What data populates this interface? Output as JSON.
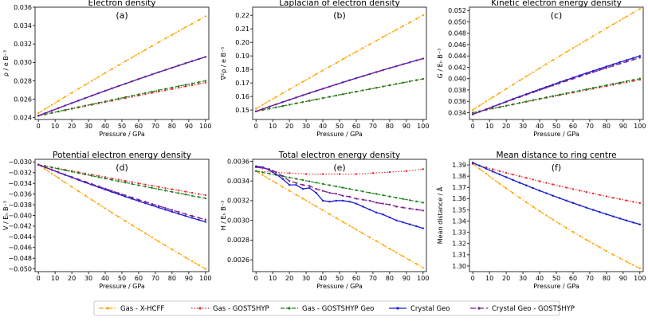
{
  "chart_data": [
    {
      "type": "line",
      "title": "Electron density",
      "label": "(a)",
      "xlabel": "Pressure / GPa",
      "ylabel": "ρ / e B⁻³",
      "xlim": [
        -2,
        102
      ],
      "ylim": [
        0.0238,
        0.036
      ],
      "xticks": [
        0,
        10,
        20,
        30,
        40,
        50,
        60,
        70,
        80,
        90,
        100
      ],
      "yticks": [
        0.024,
        0.026,
        0.028,
        0.03,
        0.032,
        0.034,
        0.036
      ],
      "ytick_labels": [
        "0.024",
        "0.026",
        "0.028",
        "0.030",
        "0.032",
        "0.034",
        "0.036"
      ],
      "series": [
        {
          "key": "xhcff",
          "name": "Gas - X-HCFF",
          "start": 0.0245,
          "end": 0.035,
          "curv": 0.06
        },
        {
          "key": "gost",
          "name": "Gas - GOSTSHYP",
          "start": 0.0242,
          "end": 0.0278,
          "curv": 0.05
        },
        {
          "key": "gostgeo",
          "name": "Gas - GOSTSHYP Geo",
          "start": 0.0242,
          "end": 0.028,
          "curv": 0.05
        },
        {
          "key": "cryst",
          "name": "Crystal Geo",
          "start": 0.0242,
          "end": 0.0306,
          "curv": 0.1
        },
        {
          "key": "crystgost",
          "name": "Crystal Geo - GOSTSHYP",
          "start": 0.0242,
          "end": 0.0306,
          "curv": 0.1
        }
      ]
    },
    {
      "type": "line",
      "title": "Laplacian of electron density",
      "label": "(b)",
      "xlabel": "Pressure / GPa",
      "ylabel": "∇²ρ / e B⁻⁵",
      "xlim": [
        -2,
        102
      ],
      "ylim": [
        0.143,
        0.226
      ],
      "xticks": [
        0,
        10,
        20,
        30,
        40,
        50,
        60,
        70,
        80,
        90,
        100
      ],
      "yticks": [
        0.15,
        0.16,
        0.17,
        0.18,
        0.19,
        0.2,
        0.21,
        0.22
      ],
      "ytick_labels": [
        "0.15",
        "0.16",
        "0.17",
        "0.18",
        "0.19",
        "0.20",
        "0.21",
        "0.22"
      ],
      "series": [
        {
          "key": "xhcff",
          "name": "Gas - X-HCFF",
          "start": 0.151,
          "end": 0.22,
          "curv": 0.04
        },
        {
          "key": "gost",
          "name": "Gas - GOSTSHYP",
          "start": 0.149,
          "end": 0.173,
          "curv": 0.03
        },
        {
          "key": "gostgeo",
          "name": "Gas - GOSTSHYP Geo",
          "start": 0.149,
          "end": 0.173,
          "curv": 0.03
        },
        {
          "key": "cryst",
          "name": "Crystal Geo",
          "start": 0.149,
          "end": 0.188,
          "curv": 0.12
        },
        {
          "key": "crystgost",
          "name": "Crystal Geo - GOSTSHYP",
          "start": 0.149,
          "end": 0.188,
          "curv": 0.12
        }
      ]
    },
    {
      "type": "line",
      "title": "Kinetic electron energy density",
      "label": "(c)",
      "xlabel": "Pressure / GPa",
      "ylabel": "G / Eₕ B⁻³",
      "xlim": [
        -2,
        102
      ],
      "ylim": [
        0.0328,
        0.0526
      ],
      "xticks": [
        0,
        10,
        20,
        30,
        40,
        50,
        60,
        70,
        80,
        90,
        100
      ],
      "yticks": [
        0.034,
        0.036,
        0.038,
        0.04,
        0.042,
        0.044,
        0.046,
        0.048,
        0.05,
        0.052
      ],
      "ytick_labels": [
        "0.034",
        "0.036",
        "0.038",
        "0.040",
        "0.042",
        "0.044",
        "0.046",
        "0.048",
        "0.050",
        "0.052"
      ],
      "series": [
        {
          "key": "xhcff",
          "name": "Gas - X-HCFF",
          "start": 0.0345,
          "end": 0.0523,
          "curv": 0.05
        },
        {
          "key": "gost",
          "name": "Gas - GOSTSHYP",
          "start": 0.034,
          "end": 0.0398,
          "curv": 0.04
        },
        {
          "key": "gostgeo",
          "name": "Gas - GOSTSHYP Geo",
          "start": 0.034,
          "end": 0.04,
          "curv": 0.04
        },
        {
          "key": "cryst",
          "name": "Crystal Geo",
          "start": 0.0337,
          "end": 0.044,
          "curv": 0.12
        },
        {
          "key": "crystgost",
          "name": "Crystal Geo - GOSTSHYP",
          "start": 0.0337,
          "end": 0.0437,
          "curv": 0.12
        }
      ]
    },
    {
      "type": "line",
      "title": "Potential electron energy density",
      "label": "(d)",
      "xlabel": "Pressure / GPa",
      "ylabel": "V / Eₕ B⁻³",
      "xlim": [
        -2,
        102
      ],
      "ylim": [
        -0.0505,
        -0.0295
      ],
      "xticks": [
        0,
        10,
        20,
        30,
        40,
        50,
        60,
        70,
        80,
        90,
        100
      ],
      "yticks": [
        -0.03,
        -0.032,
        -0.034,
        -0.036,
        -0.038,
        -0.04,
        -0.042,
        -0.044,
        -0.046,
        -0.048,
        -0.05
      ],
      "ytick_labels": [
        "−0.030",
        "−0.032",
        "−0.034",
        "−0.036",
        "−0.038",
        "−0.040",
        "−0.042",
        "−0.044",
        "−0.046",
        "−0.048",
        "−0.050"
      ],
      "series": [
        {
          "key": "xhcff",
          "name": "Gas - X-HCFF",
          "start": -0.0305,
          "end": -0.05,
          "curv": 0.08
        },
        {
          "key": "gost",
          "name": "Gas - GOSTSHYP",
          "start": -0.0305,
          "end": -0.0362,
          "curv": 0.05
        },
        {
          "key": "gostgeo",
          "name": "Gas - GOSTSHYP Geo",
          "start": -0.0305,
          "end": -0.0368,
          "curv": 0.05
        },
        {
          "key": "cryst",
          "name": "Crystal Geo",
          "start": -0.0305,
          "end": -0.0412,
          "curv": 0.15
        },
        {
          "key": "crystgost",
          "name": "Crystal Geo - GOSTSHYP",
          "start": -0.0305,
          "end": -0.0408,
          "curv": 0.15
        }
      ]
    },
    {
      "type": "line",
      "title": "Total electron energy density",
      "label": "(e)",
      "xlabel": "Pressure / GPa",
      "ylabel": "H / Eₕ B⁻³",
      "xlim": [
        -2,
        102
      ],
      "ylim": [
        0.00248,
        0.00362
      ],
      "xticks": [
        0,
        10,
        20,
        30,
        40,
        50,
        60,
        70,
        80,
        90,
        100
      ],
      "yticks": [
        0.0026,
        0.0028,
        0.003,
        0.0032,
        0.0034,
        0.0036
      ],
      "ytick_labels": [
        "0.0026",
        "0.0028",
        "0.0030",
        "0.0032",
        "0.0034",
        "0.0036"
      ],
      "series": [
        {
          "key": "xhcff",
          "name": "Gas - X-HCFF",
          "start": 0.0035,
          "end": 0.00252,
          "curv": 0.02
        },
        {
          "key": "gost",
          "name": "Gas - GOSTSHYP",
          "x": [
            0,
            10,
            20,
            30,
            40,
            50,
            60,
            70,
            80,
            90,
            100
          ],
          "values": [
            0.0035,
            0.00349,
            0.00348,
            0.00347,
            0.00347,
            0.00347,
            0.00347,
            0.00348,
            0.00349,
            0.0035,
            0.00352
          ]
        },
        {
          "key": "gostgeo",
          "name": "Gas - GOSTSHYP Geo",
          "start": 0.0035,
          "end": 0.00318,
          "curv": 0.02
        },
        {
          "key": "cryst",
          "name": "Crystal Geo",
          "x": [
            0,
            4,
            8,
            12,
            16,
            20,
            24,
            28,
            32,
            36,
            40,
            44,
            48,
            52,
            56,
            60,
            64,
            68,
            72,
            76,
            80,
            84,
            88,
            92,
            96,
            100
          ],
          "values": [
            0.00355,
            0.00354,
            0.00351,
            0.00347,
            0.00342,
            0.00336,
            0.00336,
            0.00332,
            0.00333,
            0.00328,
            0.0032,
            0.00319,
            0.0032,
            0.0032,
            0.00319,
            0.00317,
            0.00314,
            0.00311,
            0.00308,
            0.00306,
            0.00303,
            0.003,
            0.00298,
            0.00296,
            0.00294,
            0.00292
          ]
        },
        {
          "key": "crystgost",
          "name": "Crystal Geo - GOSTSHYP",
          "x": [
            0,
            4,
            8,
            12,
            16,
            20,
            24,
            28,
            32,
            36,
            40,
            44,
            48,
            52,
            56,
            60,
            64,
            68,
            72,
            76,
            80,
            84,
            88,
            92,
            96,
            100
          ],
          "values": [
            0.00354,
            0.00353,
            0.00352,
            0.00349,
            0.00345,
            0.0034,
            0.00338,
            0.00336,
            0.00335,
            0.00332,
            0.0033,
            0.00328,
            0.00327,
            0.00325,
            0.00324,
            0.00322,
            0.00321,
            0.0032,
            0.00318,
            0.00317,
            0.00316,
            0.00314,
            0.00313,
            0.00312,
            0.00311,
            0.0031
          ]
        }
      ]
    },
    {
      "type": "line",
      "title": "Mean distance to ring centre",
      "label": "(f)",
      "xlabel": "Pressure / GPa",
      "ylabel": "Mean distance / Å",
      "xlim": [
        -2,
        102
      ],
      "ylim": [
        1.295,
        1.395
      ],
      "xticks": [
        0,
        10,
        20,
        30,
        40,
        50,
        60,
        70,
        80,
        90,
        100
      ],
      "yticks": [
        1.3,
        1.31,
        1.32,
        1.33,
        1.34,
        1.35,
        1.36,
        1.37,
        1.38,
        1.39
      ],
      "ytick_labels": [
        "1.30",
        "1.31",
        "1.32",
        "1.33",
        "1.34",
        "1.35",
        "1.36",
        "1.37",
        "1.38",
        "1.39"
      ],
      "series": [
        {
          "key": "xhcff",
          "name": "Gas - X-HCFF",
          "start": 1.391,
          "end": 1.298,
          "curv": 0.22
        },
        {
          "key": "gost",
          "name": "Gas - GOSTSHYP",
          "start": 1.391,
          "end": 1.356,
          "curv": 0.18
        },
        {
          "key": "gostgeo",
          "name": "Gas - GOSTSHYP Geo",
          "start": 1.392,
          "end": 1.337,
          "curv": 0.22
        },
        {
          "key": "cryst",
          "name": "Crystal Geo",
          "start": 1.392,
          "end": 1.337,
          "curv": 0.22
        }
      ]
    }
  ],
  "styles": {
    "xhcff": {
      "color": "#ffa500",
      "dash": "6 2 1.5 2"
    },
    "gost": {
      "color": "#e8262a",
      "dash": "1.5 2"
    },
    "gostgeo": {
      "color": "#1a7f1a",
      "dash": "5 2"
    },
    "cryst": {
      "color": "#1c1cd6",
      "dash": ""
    },
    "crystgost": {
      "color": "#7a1f8c",
      "dash": "7 3"
    }
  },
  "legend": {
    "entries": [
      {
        "key": "xhcff",
        "label": "Gas - X-HCFF"
      },
      {
        "key": "gost",
        "label": "Gas - GOSTSHYP"
      },
      {
        "key": "gostgeo",
        "label": "Gas - GOSTSHYP Geo"
      },
      {
        "key": "cryst",
        "label": "Crystal Geo"
      },
      {
        "key": "crystgost",
        "label": "Crystal Geo - GOSTSHYP"
      }
    ]
  }
}
